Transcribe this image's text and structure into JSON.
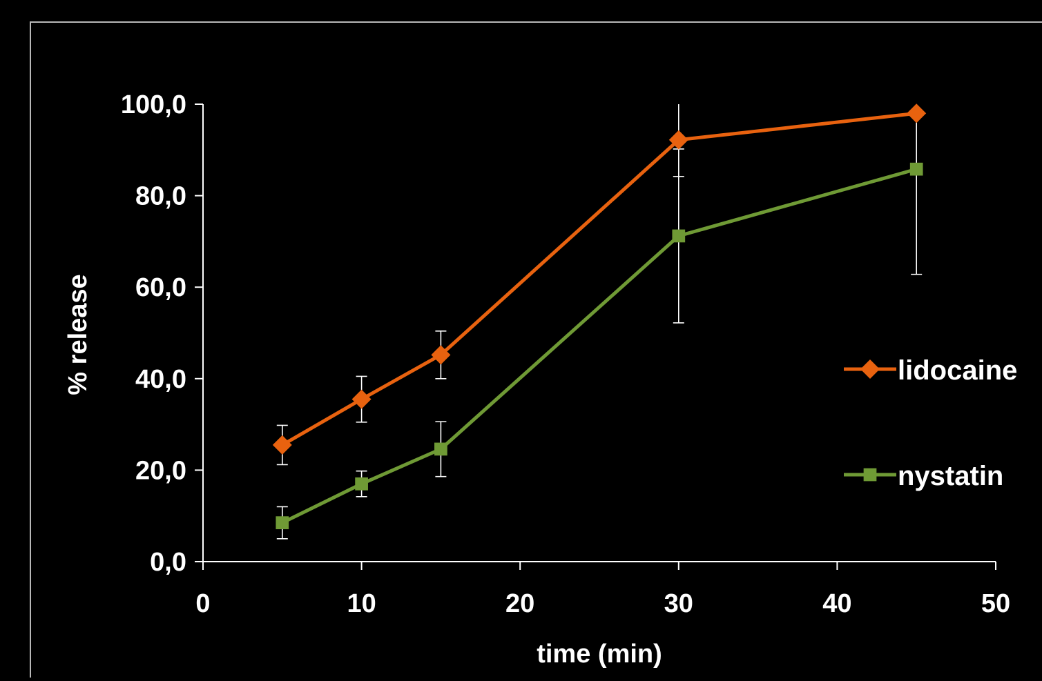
{
  "chart_data": {
    "type": "line",
    "title": "",
    "xlabel": "time (min)",
    "ylabel": "% release",
    "xlim": [
      0,
      50
    ],
    "ylim": [
      0,
      100
    ],
    "xticks": [
      0,
      10,
      20,
      30,
      40,
      50
    ],
    "xtick_labels": [
      "0",
      "10",
      "20",
      "30",
      "40",
      "50"
    ],
    "yticks": [
      0,
      20,
      40,
      60,
      80,
      100
    ],
    "ytick_labels": [
      "0,0",
      "20,0",
      "40,0",
      "60,0",
      "80,0",
      "100,0"
    ],
    "grid": false,
    "legend_position": "right",
    "background": "#000000",
    "axis_color": "#ffffff",
    "series": [
      {
        "name": "lidocaine",
        "color": "#e8620f",
        "marker": "diamond",
        "x": [
          5,
          10,
          15,
          30,
          45
        ],
        "y": [
          25.5,
          35.5,
          45.2,
          92.2,
          98.0
        ],
        "error": [
          4.3,
          5.0,
          5.2,
          8.0,
          0
        ]
      },
      {
        "name": "nystatin",
        "color": "#6f9a35",
        "marker": "square",
        "x": [
          5,
          10,
          15,
          30,
          45
        ],
        "y": [
          8.5,
          17.0,
          24.6,
          71.2,
          85.8
        ],
        "error": [
          3.5,
          2.8,
          6.0,
          19.0,
          23.0
        ]
      }
    ]
  }
}
